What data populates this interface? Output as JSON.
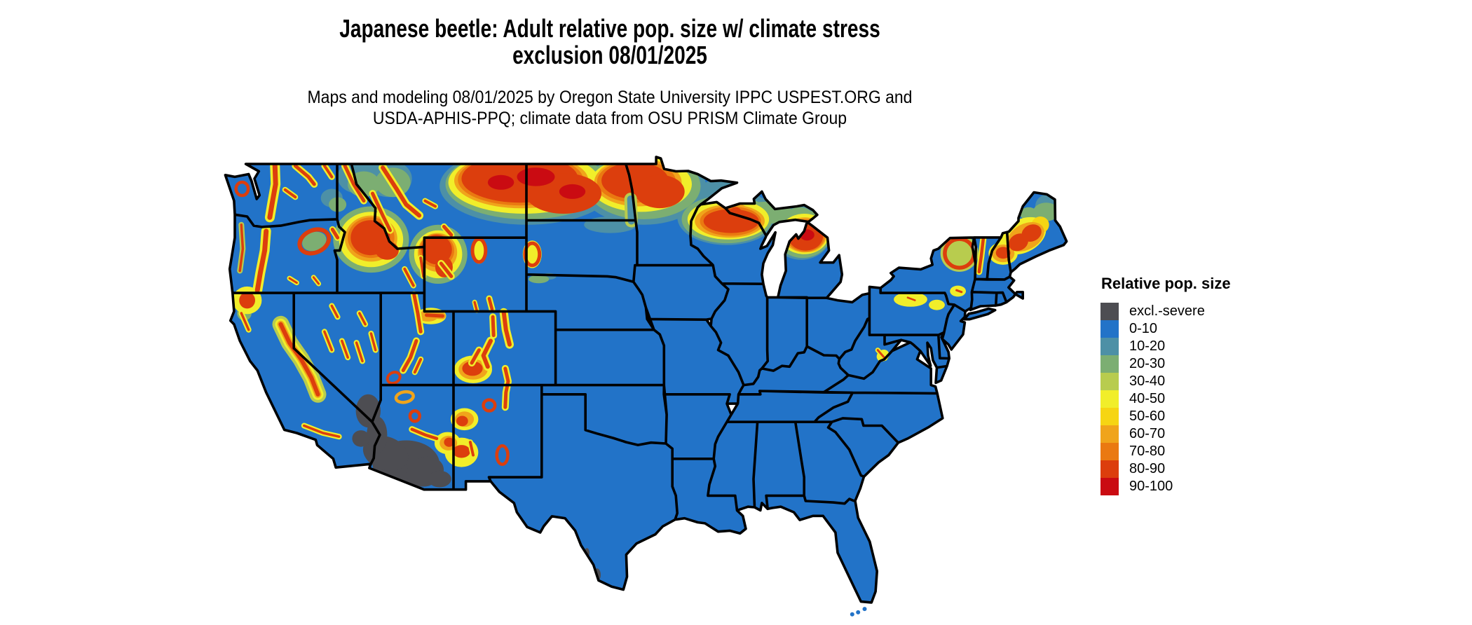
{
  "title": {
    "line1": "Japanese beetle: Adult relative pop. size w/ climate stress",
    "line2": "exclusion 08/01/2025"
  },
  "subtitle": {
    "line1": "Maps and modeling 08/01/2025 by Oregon State University IPPC USPEST.ORG and",
    "line2": "USDA-APHIS-PPQ; climate data from OSU PRISM Climate Group"
  },
  "legend": {
    "title": "Relative pop. size",
    "items": [
      {
        "label": "excl.-severe",
        "color": "#4D4D52",
        "key": "gray"
      },
      {
        "label": "0-10",
        "color": "#2273C8",
        "key": "blue"
      },
      {
        "label": "10-20",
        "color": "#4D90A6",
        "key": "teal"
      },
      {
        "label": "20-30",
        "color": "#7CAE72",
        "key": "green"
      },
      {
        "label": "30-40",
        "color": "#B8CC4E",
        "key": "ygreen"
      },
      {
        "label": "40-50",
        "color": "#F1EE2A",
        "key": "yellow"
      },
      {
        "label": "50-60",
        "color": "#F6D513",
        "key": "gold"
      },
      {
        "label": "60-70",
        "color": "#F0A41B",
        "key": "orange"
      },
      {
        "label": "70-80",
        "color": "#EA7911",
        "key": "dorange"
      },
      {
        "label": "80-90",
        "color": "#DC3E0D",
        "key": "red"
      },
      {
        "label": "90-100",
        "color": "#CA0B12",
        "key": "dred"
      }
    ]
  },
  "map": {
    "background": "#FFFFFF",
    "state_border_color": "#000000",
    "base_category": "0-10"
  }
}
